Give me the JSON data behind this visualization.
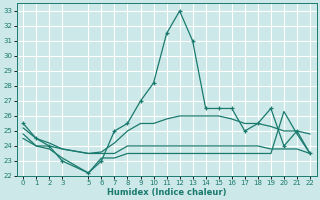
{
  "xlabel": "Humidex (Indice chaleur)",
  "background_color": "#cde8e8",
  "grid_color": "#ffffff",
  "line_color": "#1a7a6e",
  "xlim": [
    -0.5,
    22.5
  ],
  "ylim": [
    22,
    33.5
  ],
  "yticks": [
    22,
    23,
    24,
    25,
    26,
    27,
    28,
    29,
    30,
    31,
    32,
    33
  ],
  "xticks": [
    0,
    1,
    2,
    3,
    5,
    6,
    7,
    8,
    9,
    10,
    11,
    12,
    13,
    14,
    15,
    16,
    17,
    18,
    19,
    20,
    21,
    22
  ],
  "lines": [
    {
      "x": [
        0,
        1,
        2,
        3,
        5,
        6,
        7,
        8,
        9,
        10,
        11,
        12,
        13,
        14,
        15,
        16,
        17,
        18,
        19,
        20,
        21,
        22
      ],
      "y": [
        25.5,
        24.5,
        24.0,
        23.0,
        22.2,
        23.0,
        25.0,
        25.5,
        27.0,
        28.2,
        31.5,
        33.0,
        31.0,
        26.5,
        26.5,
        26.5,
        25.0,
        25.5,
        26.5,
        24.0,
        25.0,
        23.5
      ],
      "marker": "+",
      "lw": 0.9
    },
    {
      "x": [
        0,
        1,
        2,
        3,
        5,
        6,
        7,
        8,
        9,
        10,
        11,
        12,
        13,
        14,
        15,
        16,
        17,
        18,
        19,
        20,
        21,
        22
      ],
      "y": [
        25.2,
        24.5,
        24.2,
        23.8,
        23.5,
        23.6,
        24.2,
        25.0,
        25.5,
        25.5,
        25.8,
        26.0,
        26.0,
        26.0,
        26.0,
        25.8,
        25.5,
        25.5,
        25.3,
        25.0,
        25.0,
        24.8
      ],
      "marker": null,
      "lw": 0.9
    },
    {
      "x": [
        0,
        1,
        2,
        3,
        5,
        6,
        7,
        8,
        9,
        10,
        11,
        12,
        13,
        14,
        15,
        16,
        17,
        18,
        19,
        20,
        21,
        22
      ],
      "y": [
        24.8,
        24.0,
        24.0,
        23.8,
        23.5,
        23.5,
        23.5,
        24.0,
        24.0,
        24.0,
        24.0,
        24.0,
        24.0,
        24.0,
        24.0,
        24.0,
        24.0,
        24.0,
        23.8,
        23.8,
        23.8,
        23.5
      ],
      "marker": null,
      "lw": 0.9
    },
    {
      "x": [
        0,
        1,
        2,
        3,
        5,
        6,
        7,
        8,
        9,
        10,
        11,
        12,
        13,
        14,
        15,
        16,
        17,
        18,
        19,
        20,
        21,
        22
      ],
      "y": [
        24.5,
        24.0,
        23.8,
        23.2,
        22.2,
        23.2,
        23.2,
        23.5,
        23.5,
        23.5,
        23.5,
        23.5,
        23.5,
        23.5,
        23.5,
        23.5,
        23.5,
        23.5,
        23.5,
        26.3,
        24.8,
        23.5
      ],
      "marker": null,
      "lw": 0.9
    }
  ]
}
